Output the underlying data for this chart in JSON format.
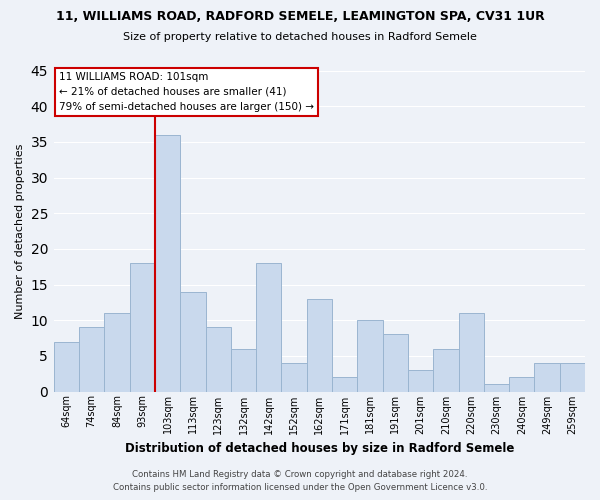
{
  "title": "11, WILLIAMS ROAD, RADFORD SEMELE, LEAMINGTON SPA, CV31 1UR",
  "subtitle": "Size of property relative to detached houses in Radford Semele",
  "xlabel": "Distribution of detached houses by size in Radford Semele",
  "ylabel": "Number of detached properties",
  "categories": [
    "64sqm",
    "74sqm",
    "84sqm",
    "93sqm",
    "103sqm",
    "113sqm",
    "123sqm",
    "132sqm",
    "142sqm",
    "152sqm",
    "162sqm",
    "171sqm",
    "181sqm",
    "191sqm",
    "201sqm",
    "210sqm",
    "220sqm",
    "230sqm",
    "240sqm",
    "249sqm",
    "259sqm"
  ],
  "values": [
    7,
    9,
    11,
    18,
    36,
    14,
    9,
    6,
    18,
    4,
    13,
    2,
    10,
    8,
    3,
    6,
    11,
    1,
    2,
    4,
    4
  ],
  "bar_color": "#c9d9ed",
  "bar_edge_color": "#9ab5d0",
  "highlight_index": 4,
  "highlight_line_color": "#cc0000",
  "ylim": [
    0,
    45
  ],
  "yticks": [
    0,
    5,
    10,
    15,
    20,
    25,
    30,
    35,
    40,
    45
  ],
  "annotation_title": "11 WILLIAMS ROAD: 101sqm",
  "annotation_line1": "← 21% of detached houses are smaller (41)",
  "annotation_line2": "79% of semi-detached houses are larger (150) →",
  "annotation_box_color": "#ffffff",
  "annotation_box_edge": "#cc0000",
  "footer1": "Contains HM Land Registry data © Crown copyright and database right 2024.",
  "footer2": "Contains public sector information licensed under the Open Government Licence v3.0.",
  "bg_color": "#eef2f8",
  "grid_color": "#ffffff"
}
